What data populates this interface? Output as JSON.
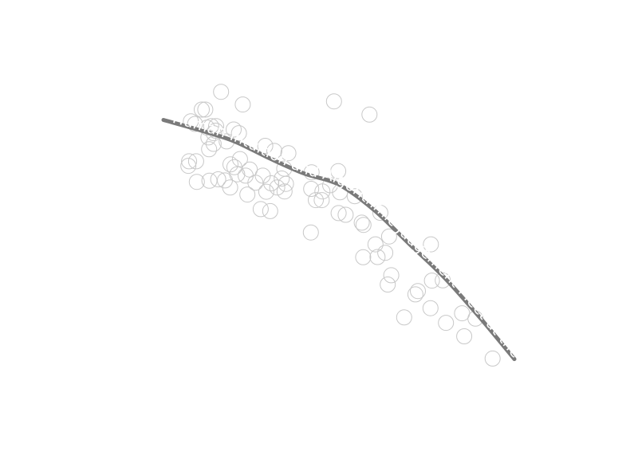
{
  "chart_data": {
    "type": "scatter",
    "title": "",
    "xlabel": "",
    "ylabel": "",
    "axes_visible": false,
    "grid": false,
    "curve_label": "Human Intuition and Algorithmic Judgement Meet at the Midpoint of the Curve",
    "colors": {
      "points": "#c8c8c8",
      "trend": "#7a7a7a",
      "label": "#ffffff"
    },
    "xlim": [
      0,
      100
    ],
    "ylim": [
      0,
      100
    ],
    "points": [
      {
        "x": 16.4,
        "y": 92.0
      },
      {
        "x": 22.6,
        "y": 87.5
      },
      {
        "x": 10.9,
        "y": 85.7
      },
      {
        "x": 11.9,
        "y": 85.7
      },
      {
        "x": 7.8,
        "y": 81.5
      },
      {
        "x": 9.0,
        "y": 80.6
      },
      {
        "x": 13.6,
        "y": 79.8
      },
      {
        "x": 15.0,
        "y": 79.8
      },
      {
        "x": 12.4,
        "y": 79.3
      },
      {
        "x": 14.9,
        "y": 78.2
      },
      {
        "x": 20.0,
        "y": 78.6
      },
      {
        "x": 14.3,
        "y": 77.3
      },
      {
        "x": 21.5,
        "y": 77.3
      },
      {
        "x": 12.8,
        "y": 75.8
      },
      {
        "x": 18.0,
        "y": 74.4
      },
      {
        "x": 14.3,
        "y": 73.5
      },
      {
        "x": 29.0,
        "y": 72.8
      },
      {
        "x": 13.0,
        "y": 71.6
      },
      {
        "x": 31.6,
        "y": 71.0
      },
      {
        "x": 35.6,
        "y": 70.2
      },
      {
        "x": 21.8,
        "y": 68.1
      },
      {
        "x": 7.3,
        "y": 67.3
      },
      {
        "x": 9.3,
        "y": 67.3
      },
      {
        "x": 19.1,
        "y": 66.2
      },
      {
        "x": 20.2,
        "y": 65.2
      },
      {
        "x": 7.1,
        "y": 65.7
      },
      {
        "x": 24.6,
        "y": 64.4
      },
      {
        "x": 34.4,
        "y": 64.7
      },
      {
        "x": 42.2,
        "y": 63.4
      },
      {
        "x": 49.8,
        "y": 63.8
      },
      {
        "x": 21.0,
        "y": 62.7
      },
      {
        "x": 23.4,
        "y": 62.2
      },
      {
        "x": 28.3,
        "y": 62.2
      },
      {
        "x": 33.7,
        "y": 61.2
      },
      {
        "x": 15.6,
        "y": 60.9
      },
      {
        "x": 17.5,
        "y": 60.5
      },
      {
        "x": 9.5,
        "y": 60.0
      },
      {
        "x": 13.1,
        "y": 60.4
      },
      {
        "x": 26.2,
        "y": 59.7
      },
      {
        "x": 30.7,
        "y": 59.5
      },
      {
        "x": 34.9,
        "y": 59.3
      },
      {
        "x": 19.0,
        "y": 58.0
      },
      {
        "x": 32.4,
        "y": 58.0
      },
      {
        "x": 47.5,
        "y": 58.8
      },
      {
        "x": 42.1,
        "y": 57.5
      },
      {
        "x": 29.3,
        "y": 56.5
      },
      {
        "x": 23.9,
        "y": 55.5
      },
      {
        "x": 45.3,
        "y": 56.6
      },
      {
        "x": 34.5,
        "y": 56.6
      },
      {
        "x": 50.3,
        "y": 56.3
      },
      {
        "x": 54.5,
        "y": 54.9
      },
      {
        "x": 45.1,
        "y": 53.5
      },
      {
        "x": 43.4,
        "y": 53.5
      },
      {
        "x": 27.7,
        "y": 50.3
      },
      {
        "x": 30.4,
        "y": 49.6
      },
      {
        "x": 49.9,
        "y": 48.9
      },
      {
        "x": 51.9,
        "y": 48.3
      },
      {
        "x": 61.8,
        "y": 49.0
      },
      {
        "x": 56.5,
        "y": 45.5
      },
      {
        "x": 57.0,
        "y": 44.7
      },
      {
        "x": 42.0,
        "y": 42.0
      },
      {
        "x": 64.3,
        "y": 40.6
      },
      {
        "x": 60.4,
        "y": 37.8
      },
      {
        "x": 63.2,
        "y": 34.8
      },
      {
        "x": 61.0,
        "y": 33.3
      },
      {
        "x": 56.9,
        "y": 33.2
      },
      {
        "x": 64.9,
        "y": 26.8
      },
      {
        "x": 63.9,
        "y": 23.5
      },
      {
        "x": 72.5,
        "y": 21.2
      },
      {
        "x": 76.1,
        "y": 15.1
      },
      {
        "x": 80.5,
        "y": 9.9
      },
      {
        "x": 85.7,
        "y": 5.1
      },
      {
        "x": 93.8,
        "y": -2.8
      },
      {
        "x": 76.5,
        "y": 24.9
      },
      {
        "x": 76.2,
        "y": 37.8
      },
      {
        "x": 68.6,
        "y": 11.8
      },
      {
        "x": 71.8,
        "y": 20.0
      },
      {
        "x": 79.6,
        "y": 25.0
      },
      {
        "x": 88.9,
        "y": 11.4
      },
      {
        "x": 48.6,
        "y": 88.6
      },
      {
        "x": 58.7,
        "y": 83.9
      },
      {
        "x": 85.1,
        "y": 13.3
      }
    ],
    "trend": [
      {
        "x": 0.0,
        "y": 82.0
      },
      {
        "x": 10.0,
        "y": 78.5
      },
      {
        "x": 20.0,
        "y": 74.5
      },
      {
        "x": 30.0,
        "y": 68.5
      },
      {
        "x": 40.0,
        "y": 63.0
      },
      {
        "x": 50.0,
        "y": 59.0
      },
      {
        "x": 60.0,
        "y": 50.0
      },
      {
        "x": 70.0,
        "y": 38.0
      },
      {
        "x": 80.0,
        "y": 26.0
      },
      {
        "x": 90.0,
        "y": 12.0
      },
      {
        "x": 100.0,
        "y": -3.0
      }
    ]
  }
}
